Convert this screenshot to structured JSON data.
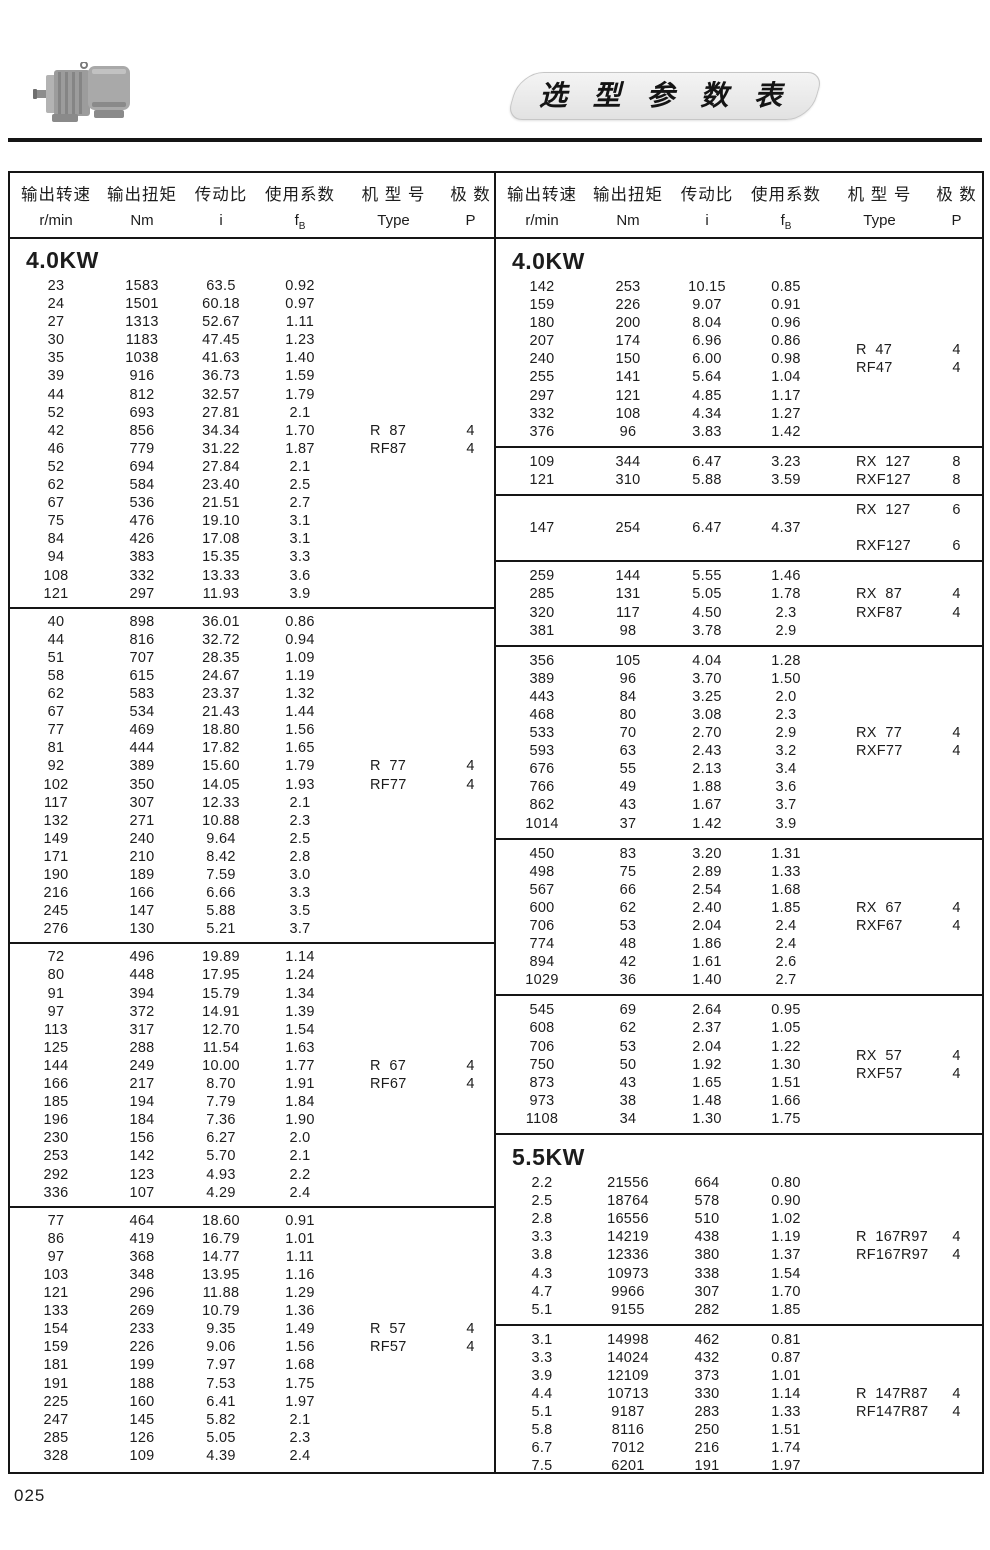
{
  "title": "选 型 参 数 表",
  "page_number": "025",
  "colors": {
    "border": "#151515",
    "banner_bg": "#ececec",
    "text": "#1c1c1c"
  },
  "icons": {
    "top_left": "gearmotor-photo"
  },
  "header": {
    "columns": [
      {
        "label": "输出转速",
        "unit": "r/min",
        "unit_sub": ""
      },
      {
        "label": "输出扭矩",
        "unit": "Nm",
        "unit_sub": ""
      },
      {
        "label": "传动比",
        "unit": "i",
        "unit_sub": ""
      },
      {
        "label": "使用系数",
        "unit": "f",
        "unit_sub": "B"
      },
      {
        "label": "机 型 号",
        "unit": "Type",
        "unit_sub": ""
      },
      {
        "label": "极  数",
        "unit": "P",
        "unit_sub": ""
      }
    ]
  },
  "left_column": {
    "sections": [
      {
        "heading": "4.0KW",
        "rows": [
          [
            "23",
            "1583",
            "63.5",
            "0.92",
            "",
            ""
          ],
          [
            "24",
            "1501",
            "60.18",
            "0.97",
            "",
            ""
          ],
          [
            "27",
            "1313",
            "52.67",
            "1.11",
            "",
            ""
          ],
          [
            "30",
            "1183",
            "47.45",
            "1.23",
            "",
            ""
          ],
          [
            "35",
            "1038",
            "41.63",
            "1.40",
            "",
            ""
          ],
          [
            "39",
            "916",
            "36.73",
            "1.59",
            "",
            ""
          ],
          [
            "44",
            "812",
            "32.57",
            "1.79",
            "",
            ""
          ],
          [
            "52",
            "693",
            "27.81",
            "2.1",
            "",
            ""
          ],
          [
            "42",
            "856",
            "34.34",
            "1.70",
            "R  87",
            "4"
          ],
          [
            "46",
            "779",
            "31.22",
            "1.87",
            "RF87",
            "4"
          ],
          [
            "52",
            "694",
            "27.84",
            "2.1",
            "",
            ""
          ],
          [
            "62",
            "584",
            "23.40",
            "2.5",
            "",
            ""
          ],
          [
            "67",
            "536",
            "21.51",
            "2.7",
            "",
            ""
          ],
          [
            "75",
            "476",
            "19.10",
            "3.1",
            "",
            ""
          ],
          [
            "84",
            "426",
            "17.08",
            "3.1",
            "",
            ""
          ],
          [
            "94",
            "383",
            "15.35",
            "3.3",
            "",
            ""
          ],
          [
            "108",
            "332",
            "13.33",
            "3.6",
            "",
            ""
          ],
          [
            "121",
            "297",
            "11.93",
            "3.9",
            "",
            ""
          ]
        ]
      },
      {
        "rows": [
          [
            "40",
            "898",
            "36.01",
            "0.86",
            "",
            ""
          ],
          [
            "44",
            "816",
            "32.72",
            "0.94",
            "",
            ""
          ],
          [
            "51",
            "707",
            "28.35",
            "1.09",
            "",
            ""
          ],
          [
            "58",
            "615",
            "24.67",
            "1.19",
            "",
            ""
          ],
          [
            "62",
            "583",
            "23.37",
            "1.32",
            "",
            ""
          ],
          [
            "67",
            "534",
            "21.43",
            "1.44",
            "",
            ""
          ],
          [
            "77",
            "469",
            "18.80",
            "1.56",
            "",
            ""
          ],
          [
            "81",
            "444",
            "17.82",
            "1.65",
            "",
            ""
          ],
          [
            "92",
            "389",
            "15.60",
            "1.79",
            "R  77",
            "4"
          ],
          [
            "102",
            "350",
            "14.05",
            "1.93",
            "RF77",
            "4"
          ],
          [
            "117",
            "307",
            "12.33",
            "2.1",
            "",
            ""
          ],
          [
            "132",
            "271",
            "10.88",
            "2.3",
            "",
            ""
          ],
          [
            "149",
            "240",
            "9.64",
            "2.5",
            "",
            ""
          ],
          [
            "171",
            "210",
            "8.42",
            "2.8",
            "",
            ""
          ],
          [
            "190",
            "189",
            "7.59",
            "3.0",
            "",
            ""
          ],
          [
            "216",
            "166",
            "6.66",
            "3.3",
            "",
            ""
          ],
          [
            "245",
            "147",
            "5.88",
            "3.5",
            "",
            ""
          ],
          [
            "276",
            "130",
            "5.21",
            "3.7",
            "",
            ""
          ]
        ]
      },
      {
        "rows": [
          [
            "72",
            "496",
            "19.89",
            "1.14",
            "",
            ""
          ],
          [
            "80",
            "448",
            "17.95",
            "1.24",
            "",
            ""
          ],
          [
            "91",
            "394",
            "15.79",
            "1.34",
            "",
            ""
          ],
          [
            "97",
            "372",
            "14.91",
            "1.39",
            "",
            ""
          ],
          [
            "113",
            "317",
            "12.70",
            "1.54",
            "",
            ""
          ],
          [
            "125",
            "288",
            "11.54",
            "1.63",
            "",
            ""
          ],
          [
            "144",
            "249",
            "10.00",
            "1.77",
            "R  67",
            "4"
          ],
          [
            "166",
            "217",
            "8.70",
            "1.91",
            "RF67",
            "4"
          ],
          [
            "185",
            "194",
            "7.79",
            "1.84",
            "",
            ""
          ],
          [
            "196",
            "184",
            "7.36",
            "1.90",
            "",
            ""
          ],
          [
            "230",
            "156",
            "6.27",
            "2.0",
            "",
            ""
          ],
          [
            "253",
            "142",
            "5.70",
            "2.1",
            "",
            ""
          ],
          [
            "292",
            "123",
            "4.93",
            "2.2",
            "",
            ""
          ],
          [
            "336",
            "107",
            "4.29",
            "2.4",
            "",
            ""
          ]
        ]
      },
      {
        "rows": [
          [
            "77",
            "464",
            "18.60",
            "0.91",
            "",
            ""
          ],
          [
            "86",
            "419",
            "16.79",
            "1.01",
            "",
            ""
          ],
          [
            "97",
            "368",
            "14.77",
            "1.11",
            "",
            ""
          ],
          [
            "103",
            "348",
            "13.95",
            "1.16",
            "",
            ""
          ],
          [
            "121",
            "296",
            "11.88",
            "1.29",
            "",
            ""
          ],
          [
            "133",
            "269",
            "10.79",
            "1.36",
            "",
            ""
          ],
          [
            "154",
            "233",
            "9.35",
            "1.49",
            "R  57",
            "4"
          ],
          [
            "159",
            "226",
            "9.06",
            "1.56",
            "RF57",
            "4"
          ],
          [
            "181",
            "199",
            "7.97",
            "1.68",
            "",
            ""
          ],
          [
            "191",
            "188",
            "7.53",
            "1.75",
            "",
            ""
          ],
          [
            "225",
            "160",
            "6.41",
            "1.97",
            "",
            ""
          ],
          [
            "247",
            "145",
            "5.82",
            "2.1",
            "",
            ""
          ],
          [
            "285",
            "126",
            "5.05",
            "2.3",
            "",
            ""
          ],
          [
            "328",
            "109",
            "4.39",
            "2.4",
            "",
            ""
          ]
        ]
      }
    ]
  },
  "right_column": {
    "sections": [
      {
        "heading": "4.0KW",
        "type_offset": true,
        "rows": [
          [
            "142",
            "253",
            "10.15",
            "0.85",
            "",
            ""
          ],
          [
            "159",
            "226",
            "9.07",
            "0.91",
            "",
            ""
          ],
          [
            "180",
            "200",
            "8.04",
            "0.96",
            "",
            ""
          ],
          [
            "207",
            "174",
            "6.96",
            "0.86",
            "R  47",
            "4"
          ],
          [
            "240",
            "150",
            "6.00",
            "0.98",
            "RF47",
            "4"
          ],
          [
            "255",
            "141",
            "5.64",
            "1.04",
            "",
            ""
          ],
          [
            "297",
            "121",
            "4.85",
            "1.17",
            "",
            ""
          ],
          [
            "332",
            "108",
            "4.34",
            "1.27",
            "",
            ""
          ],
          [
            "376",
            "96",
            "3.83",
            "1.42",
            "",
            ""
          ]
        ]
      },
      {
        "rows": [
          [
            "109",
            "344",
            "6.47",
            "3.23",
            "RX  127",
            "8"
          ],
          [
            "121",
            "310",
            "5.88",
            "3.59",
            "RXF127",
            "8"
          ]
        ]
      },
      {
        "rows": [
          [
            "",
            "",
            "",
            "",
            "RX  127",
            "6"
          ],
          [
            "147",
            "254",
            "6.47",
            "4.37",
            "",
            ""
          ],
          [
            "",
            "",
            "",
            "",
            "RXF127",
            "6"
          ]
        ]
      },
      {
        "rows": [
          [
            "259",
            "144",
            "5.55",
            "1.46",
            "",
            ""
          ],
          [
            "285",
            "131",
            "5.05",
            "1.78",
            "RX  87",
            "4"
          ],
          [
            "320",
            "117",
            "4.50",
            "2.3",
            "RXF87",
            "4"
          ],
          [
            "381",
            "98",
            "3.78",
            "2.9",
            "",
            ""
          ]
        ]
      },
      {
        "rows": [
          [
            "356",
            "105",
            "4.04",
            "1.28",
            "",
            ""
          ],
          [
            "389",
            "96",
            "3.70",
            "1.50",
            "",
            ""
          ],
          [
            "443",
            "84",
            "3.25",
            "2.0",
            "",
            ""
          ],
          [
            "468",
            "80",
            "3.08",
            "2.3",
            "",
            ""
          ],
          [
            "533",
            "70",
            "2.70",
            "2.9",
            "RX  77",
            "4"
          ],
          [
            "593",
            "63",
            "2.43",
            "3.2",
            "RXF77",
            "4"
          ],
          [
            "676",
            "55",
            "2.13",
            "3.4",
            "",
            ""
          ],
          [
            "766",
            "49",
            "1.88",
            "3.6",
            "",
            ""
          ],
          [
            "862",
            "43",
            "1.67",
            "3.7",
            "",
            ""
          ],
          [
            "1014",
            "37",
            "1.42",
            "3.9",
            "",
            ""
          ]
        ]
      },
      {
        "rows": [
          [
            "450",
            "83",
            "3.20",
            "1.31",
            "",
            ""
          ],
          [
            "498",
            "75",
            "2.89",
            "1.33",
            "",
            ""
          ],
          [
            "567",
            "66",
            "2.54",
            "1.68",
            "",
            ""
          ],
          [
            "600",
            "62",
            "2.40",
            "1.85",
            "RX  67",
            "4"
          ],
          [
            "706",
            "53",
            "2.04",
            "2.4",
            "RXF67",
            "4"
          ],
          [
            "774",
            "48",
            "1.86",
            "2.4",
            "",
            ""
          ],
          [
            "894",
            "42",
            "1.61",
            "2.6",
            "",
            ""
          ],
          [
            "1029",
            "36",
            "1.40",
            "2.7",
            "",
            ""
          ]
        ]
      },
      {
        "type_offset": true,
        "rows": [
          [
            "545",
            "69",
            "2.64",
            "0.95",
            "",
            ""
          ],
          [
            "608",
            "62",
            "2.37",
            "1.05",
            "",
            ""
          ],
          [
            "706",
            "53",
            "2.04",
            "1.22",
            "RX  57",
            "4"
          ],
          [
            "750",
            "50",
            "1.92",
            "1.30",
            "RXF57",
            "4"
          ],
          [
            "873",
            "43",
            "1.65",
            "1.51",
            "",
            ""
          ],
          [
            "973",
            "38",
            "1.48",
            "1.66",
            "",
            ""
          ],
          [
            "1108",
            "34",
            "1.30",
            "1.75",
            "",
            ""
          ]
        ]
      },
      {
        "heading": "5.5KW",
        "rows": [
          [
            "2.2",
            "21556",
            "664",
            "0.80",
            "",
            ""
          ],
          [
            "2.5",
            "18764",
            "578",
            "0.90",
            "",
            ""
          ],
          [
            "2.8",
            "16556",
            "510",
            "1.02",
            "",
            ""
          ],
          [
            "3.3",
            "14219",
            "438",
            "1.19",
            "R  167R97",
            "4"
          ],
          [
            "3.8",
            "12336",
            "380",
            "1.37",
            "RF167R97",
            "4"
          ],
          [
            "4.3",
            "10973",
            "338",
            "1.54",
            "",
            ""
          ],
          [
            "4.7",
            "9966",
            "307",
            "1.70",
            "",
            ""
          ],
          [
            "5.1",
            "9155",
            "282",
            "1.85",
            "",
            ""
          ]
        ]
      },
      {
        "rows": [
          [
            "3.1",
            "14998",
            "462",
            "0.81",
            "",
            ""
          ],
          [
            "3.3",
            "14024",
            "432",
            "0.87",
            "",
            ""
          ],
          [
            "3.9",
            "12109",
            "373",
            "1.01",
            "",
            ""
          ],
          [
            "4.4",
            "10713",
            "330",
            "1.14",
            "R  147R87",
            "4"
          ],
          [
            "5.1",
            "9187",
            "283",
            "1.33",
            "RF147R87",
            "4"
          ],
          [
            "5.8",
            "8116",
            "250",
            "1.51",
            "",
            ""
          ],
          [
            "6.7",
            "7012",
            "216",
            "1.74",
            "",
            ""
          ],
          [
            "7.5",
            "6201",
            "191",
            "1.97",
            "",
            ""
          ]
        ]
      }
    ]
  }
}
